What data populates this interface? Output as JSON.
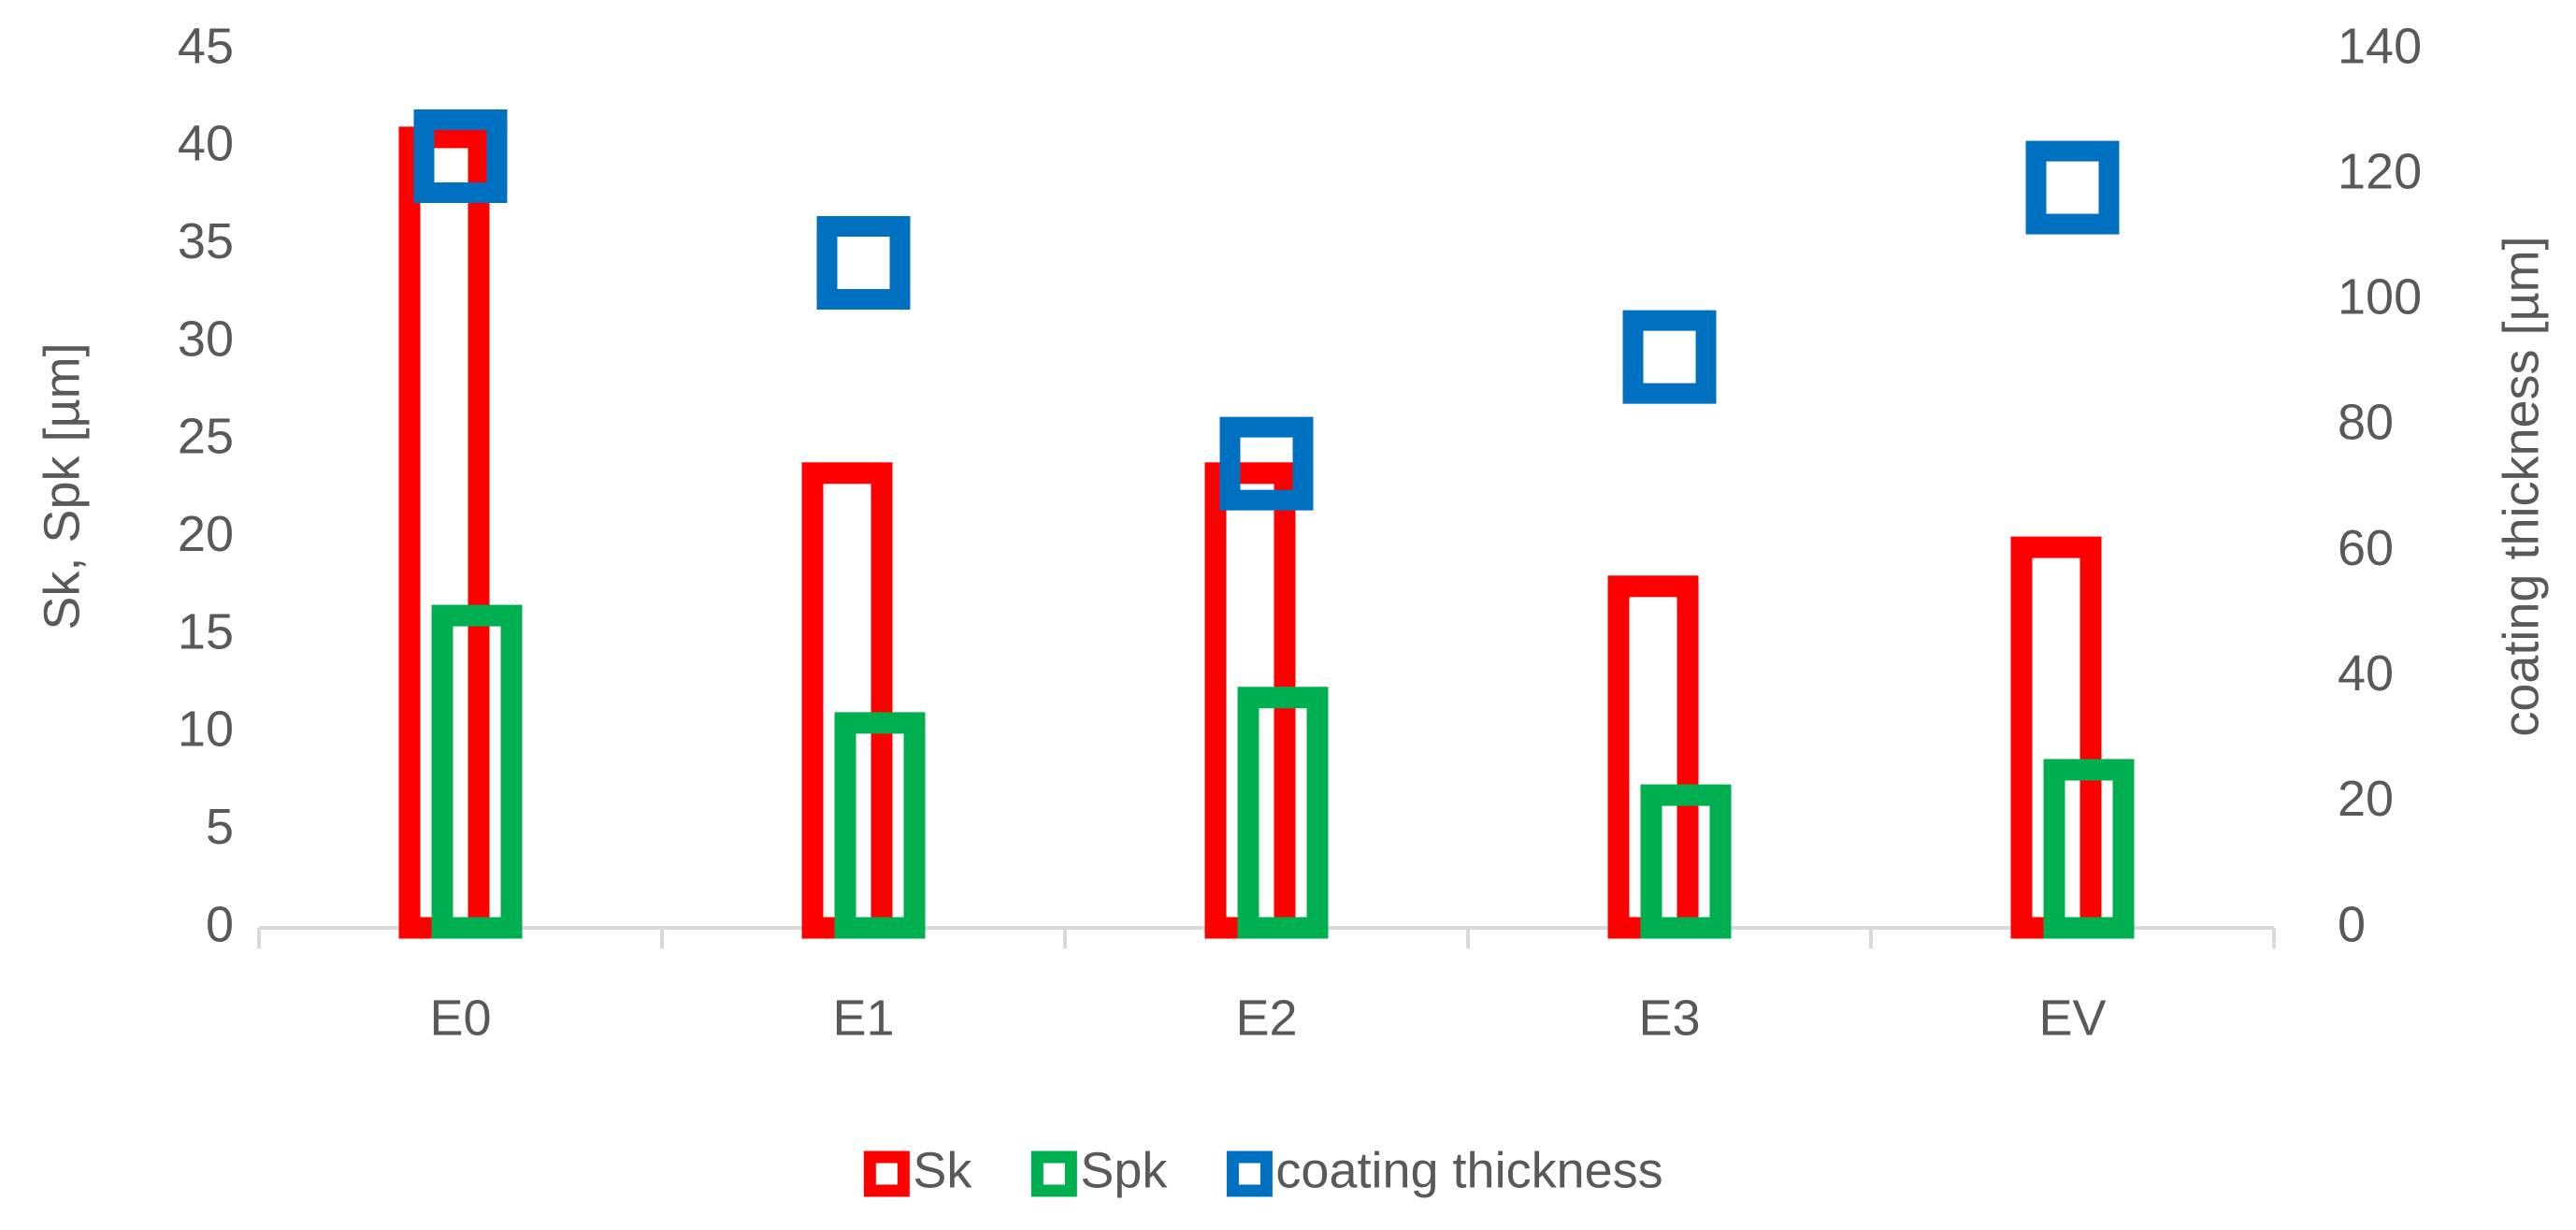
{
  "chart_data": {
    "type": "bar",
    "categories": [
      "E0",
      "E1",
      "E2",
      "E3",
      "EV"
    ],
    "y_label": "Sk, Spk  [µm]",
    "y2_label": "coating thickness [µm]",
    "ylim": [
      0,
      45
    ],
    "yticks": [
      0,
      5,
      10,
      15,
      20,
      25,
      30,
      35,
      40,
      45
    ],
    "y2lim": [
      0,
      140
    ],
    "y2ticks": [
      0,
      20,
      40,
      60,
      80,
      100,
      120,
      140
    ],
    "legend": "bottom",
    "series": [
      {
        "name": "Sk",
        "color": "#ff0000",
        "type": "bar",
        "values": [
          40.5,
          23.3,
          23.3,
          17.5,
          19.5
        ]
      },
      {
        "name": "Spk",
        "color": "#00b050",
        "type": "bar",
        "values": [
          16,
          10.5,
          11.8,
          6.8,
          8.1
        ]
      },
      {
        "name": "coating thickness",
        "color": "#0070c0",
        "type": "scatter",
        "axis": "y2",
        "values": [
          123,
          106,
          74,
          91,
          118
        ]
      }
    ]
  }
}
